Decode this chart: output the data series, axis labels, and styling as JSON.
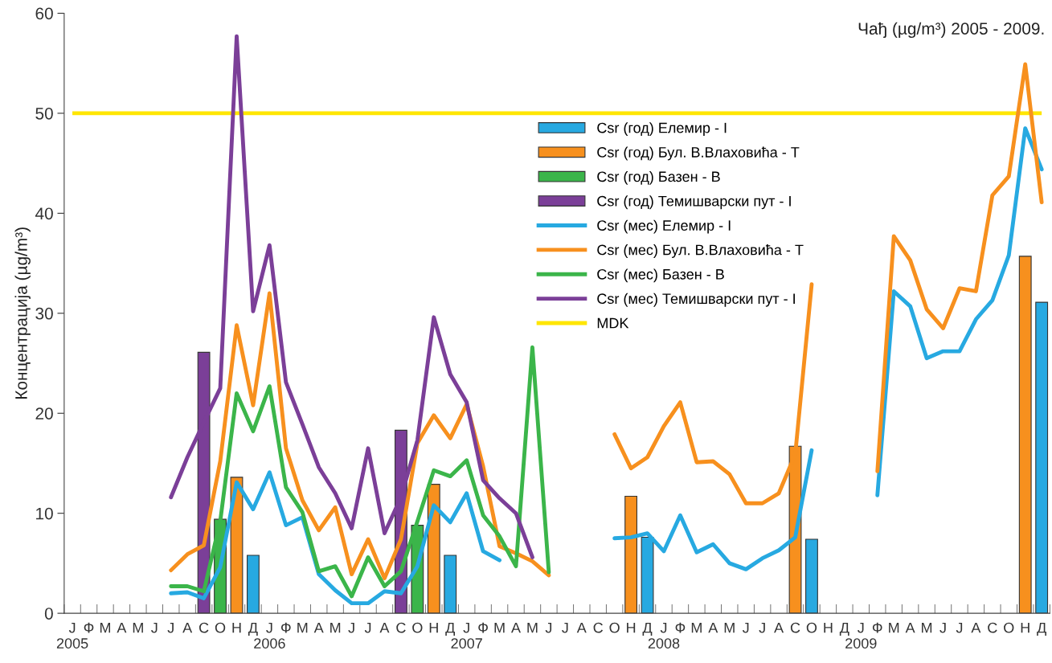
{
  "chart_data": {
    "type": "bar",
    "title": "Чађ (µg/m³) 2005 - 2009.",
    "ylabel": "Концентрација (µg/m³)",
    "categories": [
      "Ј\n2005",
      "Ф",
      "М",
      "А",
      "М",
      "Ј",
      "Ј",
      "А",
      "С",
      "О",
      "Н",
      "Д",
      "Ј\n2006",
      "Ф",
      "М",
      "А",
      "М",
      "Ј",
      "Ј",
      "А",
      "С",
      "О",
      "Н",
      "Д",
      "Ј\n2007",
      "Ф",
      "М",
      "А",
      "М",
      "Ј",
      "Ј",
      "А",
      "С",
      "О",
      "Н",
      "Д",
      "Ј\n2008",
      "Ф",
      "М",
      "А",
      "М",
      "Ј",
      "Ј",
      "А",
      "С",
      "О",
      "Н",
      "Д",
      "Ј\n2009",
      "Ф",
      "М",
      "А",
      "М",
      "Ј",
      "Ј",
      "А",
      "С",
      "О",
      "Н",
      "Д"
    ],
    "ylim": [
      0,
      60
    ],
    "yticks": [
      0,
      10,
      20,
      30,
      40,
      50,
      60
    ],
    "legend": "top",
    "grid": false,
    "series": [
      {
        "name": "Csr (год) Елемир - I",
        "color": "#27a9e1",
        "values": [
          null,
          null,
          null,
          null,
          null,
          null,
          null,
          null,
          null,
          null,
          null,
          5.8,
          null,
          null,
          null,
          null,
          null,
          null,
          null,
          null,
          null,
          null,
          null,
          5.8,
          null,
          null,
          null,
          null,
          null,
          null,
          null,
          null,
          null,
          null,
          null,
          7.6,
          null,
          null,
          null,
          null,
          null,
          null,
          null,
          null,
          null,
          7.4,
          null,
          null,
          null,
          null,
          null,
          null,
          null,
          null,
          null,
          null,
          null,
          null,
          null,
          31.1
        ]
      },
      {
        "name": "Csr (год) Бул. В.Влаховића - Т",
        "color": "#f7901e",
        "values": [
          null,
          null,
          null,
          null,
          null,
          null,
          null,
          null,
          null,
          null,
          13.6,
          null,
          null,
          null,
          null,
          null,
          null,
          null,
          null,
          null,
          null,
          null,
          12.9,
          null,
          null,
          null,
          null,
          null,
          null,
          null,
          null,
          null,
          null,
          null,
          11.7,
          null,
          null,
          null,
          null,
          null,
          null,
          null,
          null,
          null,
          16.7,
          null,
          null,
          null,
          null,
          null,
          null,
          null,
          null,
          null,
          null,
          null,
          null,
          null,
          35.7,
          null
        ]
      },
      {
        "name": "Csr (год) Базен - В",
        "color": "#3bb54a",
        "values": [
          null,
          null,
          null,
          null,
          null,
          null,
          null,
          null,
          null,
          9.4,
          null,
          null,
          null,
          null,
          null,
          null,
          null,
          null,
          null,
          null,
          null,
          8.8,
          null,
          null,
          null,
          null,
          null,
          null,
          null,
          null,
          null,
          null,
          null,
          null,
          null,
          null,
          null,
          null,
          null,
          null,
          null,
          null,
          null,
          null,
          null,
          null,
          null,
          null,
          null,
          null,
          null,
          null,
          null,
          null,
          null,
          null,
          null,
          null,
          null,
          null
        ]
      },
      {
        "name": "Csr (год) Темишварски пут - I",
        "color": "#7b3f98",
        "values": [
          null,
          null,
          null,
          null,
          null,
          null,
          null,
          null,
          26.1,
          null,
          null,
          null,
          null,
          null,
          null,
          null,
          null,
          null,
          null,
          null,
          18.3,
          null,
          null,
          null,
          null,
          null,
          null,
          null,
          null,
          null,
          null,
          null,
          null,
          null,
          null,
          null,
          null,
          null,
          null,
          null,
          null,
          null,
          null,
          null,
          null,
          null,
          null,
          null,
          null,
          null,
          null,
          null,
          null,
          null,
          null,
          null,
          null,
          null,
          null,
          null
        ]
      },
      {
        "name": "Csr (мес) Елемир - I",
        "type": "line",
        "color": "#27a9e1",
        "values": [
          null,
          null,
          null,
          null,
          null,
          null,
          2.0,
          2.1,
          1.5,
          4.6,
          13.1,
          10.4,
          14.1,
          8.8,
          9.6,
          3.9,
          2.3,
          1.0,
          1.0,
          2.2,
          2.0,
          4.7,
          10.8,
          9.1,
          12.0,
          6.2,
          5.3,
          null,
          null,
          null,
          null,
          null,
          null,
          7.5,
          7.6,
          8.0,
          6.2,
          9.8,
          6.1,
          6.9,
          5.0,
          4.4,
          5.5,
          6.3,
          7.6,
          16.3,
          null,
          null,
          null,
          11.8,
          32.2,
          30.7,
          25.5,
          26.2,
          26.2,
          29.4,
          31.3,
          35.8,
          48.5,
          44.4
        ]
      },
      {
        "name": "Csr (мес) Бул. В.Влаховића - Т",
        "type": "line",
        "color": "#f7901e",
        "values": [
          null,
          null,
          null,
          null,
          null,
          null,
          4.3,
          5.9,
          6.8,
          15.2,
          28.8,
          20.8,
          32.0,
          16.5,
          11.3,
          8.3,
          10.6,
          3.9,
          7.4,
          3.5,
          7.4,
          17.0,
          19.8,
          17.5,
          20.9,
          14.7,
          6.7,
          6.0,
          5.2,
          3.8,
          null,
          null,
          null,
          17.9,
          14.5,
          15.6,
          18.7,
          21.1,
          15.1,
          15.2,
          13.9,
          11.0,
          11.0,
          12.0,
          15.9,
          32.9,
          null,
          null,
          null,
          14.2,
          37.7,
          35.3,
          30.4,
          28.5,
          32.5,
          32.2,
          41.8,
          43.7,
          54.9,
          41.1
        ]
      },
      {
        "name": "Csr (мес) Базен - В",
        "type": "line",
        "color": "#3bb54a",
        "values": [
          null,
          null,
          null,
          null,
          null,
          null,
          2.7,
          2.7,
          2.2,
          9.2,
          22.0,
          18.2,
          22.7,
          12.6,
          10.1,
          4.2,
          4.7,
          1.7,
          5.6,
          2.7,
          4.2,
          9.2,
          14.3,
          13.7,
          15.3,
          9.8,
          7.7,
          4.7,
          26.6,
          4.1,
          null,
          null,
          null,
          null,
          null,
          null,
          null,
          null,
          null,
          null,
          null,
          null,
          null,
          null,
          null,
          null,
          null,
          null,
          null,
          null,
          null,
          null,
          null,
          null,
          null,
          null,
          null,
          null,
          null,
          null
        ]
      },
      {
        "name": "Csr (мес) Темишварски пут - I",
        "type": "line",
        "color": "#7b3f98",
        "values": [
          null,
          null,
          null,
          null,
          null,
          null,
          11.6,
          15.6,
          19.1,
          22.5,
          57.7,
          30.2,
          36.8,
          23.1,
          18.9,
          14.6,
          12.0,
          8.5,
          16.5,
          8.0,
          11.6,
          17.3,
          29.6,
          23.9,
          21.1,
          13.3,
          11.5,
          10.0,
          5.6,
          null,
          null,
          null,
          null,
          null,
          null,
          null,
          null,
          null,
          null,
          null,
          null,
          null,
          null,
          null,
          null,
          null,
          null,
          null,
          null,
          null,
          null,
          null,
          null,
          null,
          null,
          null,
          null,
          null,
          null,
          null
        ]
      }
    ],
    "ref_lines": [
      {
        "axis": "y",
        "value": 50,
        "label": "MDK",
        "color": "#ffe600"
      }
    ]
  }
}
